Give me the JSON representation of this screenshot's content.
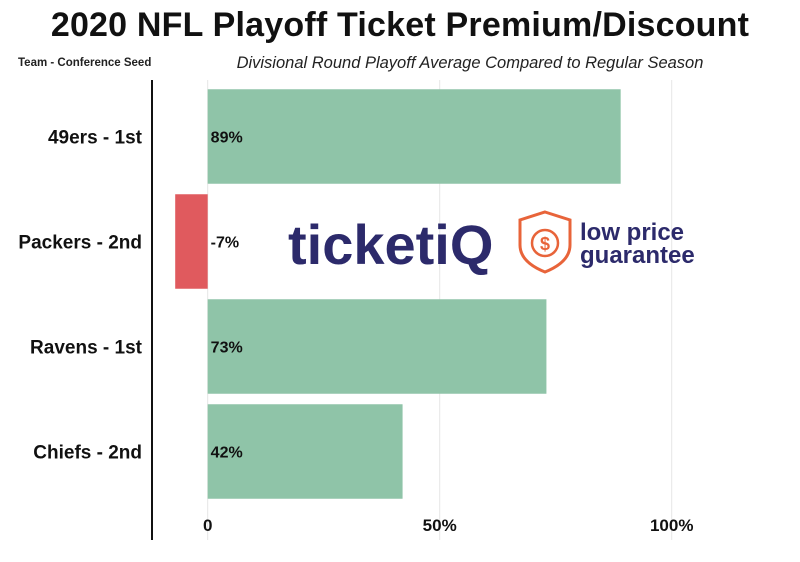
{
  "chart_data": {
    "type": "bar",
    "orientation": "horizontal",
    "title": "2020 NFL Playoff Ticket Premium/Discount",
    "subtitle": "Divisional Round Playoff Average Compared to Regular Season",
    "category_header": "Team - Conference Seed",
    "categories": [
      "49ers - 1st",
      "Packers - 2nd",
      "Ravens - 1st",
      "Chiefs - 2nd"
    ],
    "values": [
      89,
      -7,
      73,
      42
    ],
    "value_labels": [
      "89%",
      "-7%",
      "73%",
      "42%"
    ],
    "xlim": [
      -12,
      127
    ],
    "x_ticks": [
      {
        "value": 0,
        "label": "0"
      },
      {
        "value": 50,
        "label": "50%"
      },
      {
        "value": 100,
        "label": "100%"
      }
    ],
    "grid": true,
    "colors": {
      "positive": "#8fc4a8",
      "negative": "#e05a5e",
      "grid": "#e6e6e6",
      "axis": "#111111"
    }
  },
  "watermark": {
    "brand_text": "ticketiQ",
    "tagline_lines": [
      "low price",
      "guarantee"
    ],
    "color": "#2c2a6b",
    "accent": "#e8643a"
  }
}
